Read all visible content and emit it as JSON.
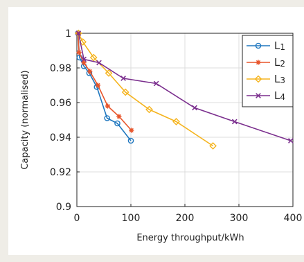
{
  "chart_data": {
    "type": "line",
    "xlabel": "Energy throughput/kWh",
    "ylabel": "Capacity (normalised)",
    "xlim": [
      0,
      400
    ],
    "ylim": [
      0.9,
      1.0
    ],
    "xticks": [
      0,
      100,
      200,
      300,
      400
    ],
    "yticks": [
      0.9,
      0.92,
      0.94,
      0.96,
      0.98,
      1
    ],
    "ytick_labels": [
      "0.9",
      "0.92",
      "0.94",
      "0.96",
      "0.98",
      "1"
    ],
    "xtick_labels": [
      "0",
      "100",
      "200",
      "300",
      "400"
    ],
    "grid": true,
    "legend_position": "top-right",
    "series": [
      {
        "name": "L1",
        "label_base": "L",
        "label_index": "1",
        "color": "#1f77bf",
        "marker": "circle",
        "x": [
          2,
          5,
          13,
          23,
          37,
          56,
          75,
          100
        ],
        "y": [
          1.0,
          0.986,
          0.981,
          0.977,
          0.969,
          0.951,
          0.948,
          0.938
        ]
      },
      {
        "name": "L2",
        "label_base": "L",
        "label_index": "2",
        "color": "#e8552b",
        "marker": "asterisk",
        "x": [
          2,
          4,
          13,
          24,
          39,
          57,
          78,
          101
        ],
        "y": [
          1.0,
          0.989,
          0.983,
          0.978,
          0.97,
          0.958,
          0.952,
          0.944
        ]
      },
      {
        "name": "L3",
        "label_base": "L",
        "label_index": "3",
        "color": "#f5b41e",
        "marker": "diamond",
        "x": [
          3,
          11,
          31,
          59,
          90,
          134,
          184,
          252
        ],
        "y": [
          1.0,
          0.995,
          0.986,
          0.977,
          0.966,
          0.956,
          0.949,
          0.935
        ]
      },
      {
        "name": "L4",
        "label_base": "L",
        "label_index": "4",
        "color": "#7b2f8e",
        "marker": "x",
        "x": [
          3,
          13,
          41,
          86,
          147,
          218,
          292,
          396
        ],
        "y": [
          1.0,
          0.985,
          0.983,
          0.974,
          0.971,
          0.957,
          0.949,
          0.938
        ]
      }
    ]
  }
}
